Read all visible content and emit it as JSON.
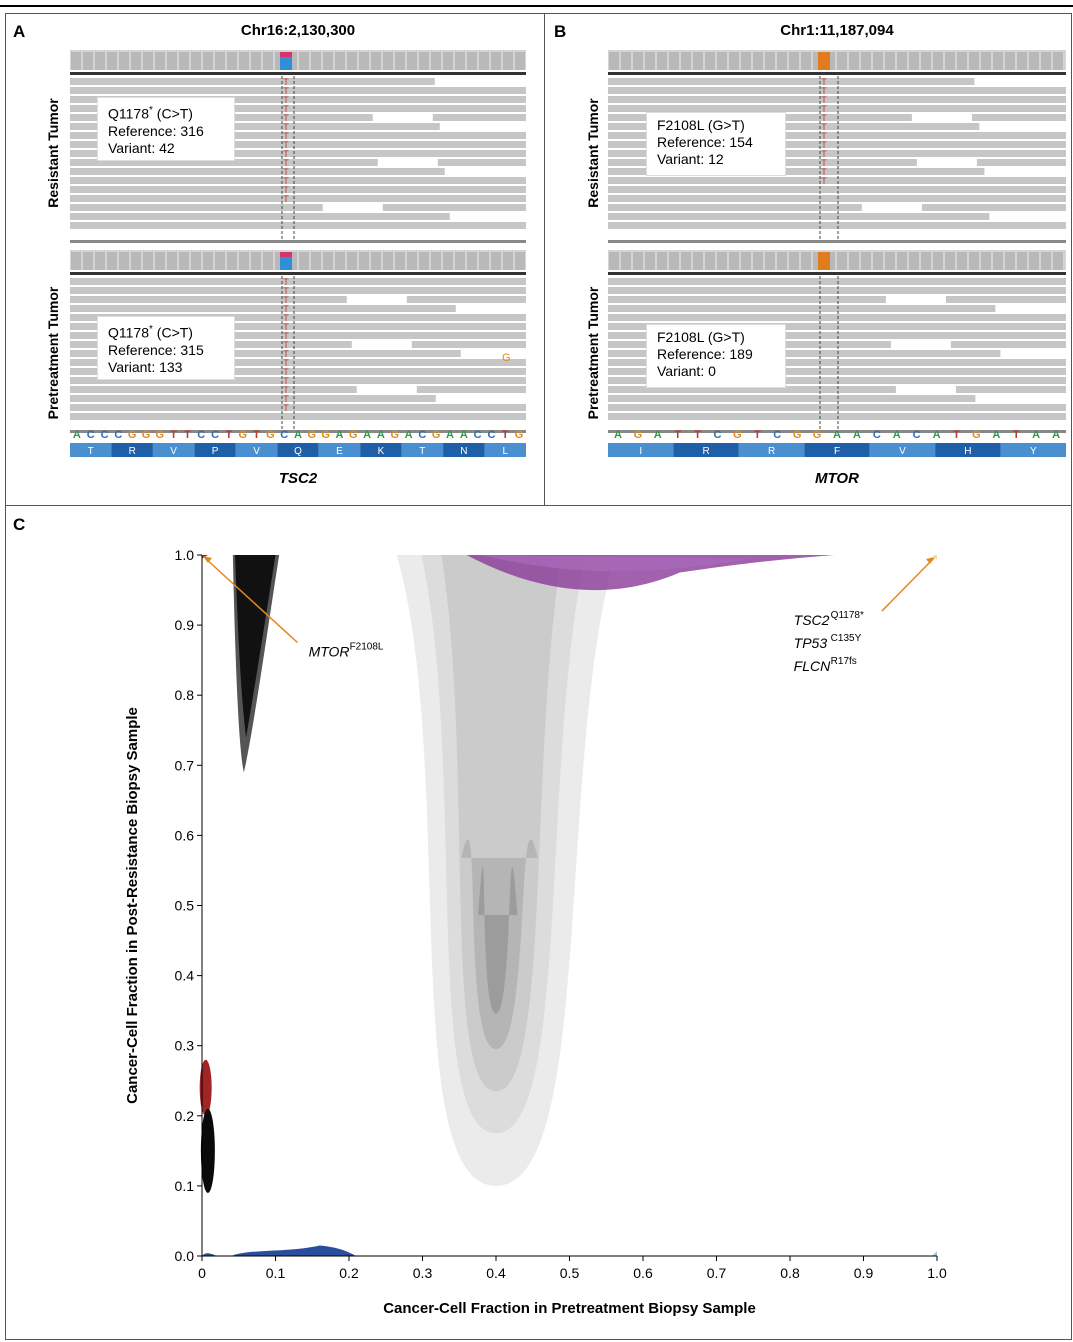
{
  "panels": {
    "a": {
      "label": "A",
      "title": "Chr16:2,130,300",
      "gene": "TSC2",
      "resistant": {
        "row_label": "Resistant Tumor",
        "mutation": "Q1178",
        "mutation_sup": "*",
        "mutation_change": " (C>T)",
        "reference": "Reference: 316",
        "variant": "Variant: 42"
      },
      "pretreatment": {
        "row_label": "Pretreatment Tumor",
        "mutation": "Q1178",
        "mutation_sup": "*",
        "mutation_change": " (C>T)",
        "reference": "Reference: 315",
        "variant": "Variant: 133"
      },
      "sequence": [
        "A",
        "C",
        "C",
        "C",
        "G",
        "G",
        "G",
        "T",
        "T",
        "C",
        "C",
        "T",
        "G",
        "T",
        "G",
        "C",
        "A",
        "G",
        "G",
        "A",
        "G",
        "A",
        "A",
        "G",
        "A",
        "C",
        "G",
        "A",
        "A",
        "C",
        "C",
        "T",
        "G"
      ],
      "amino_acids": [
        "T",
        "R",
        "V",
        "P",
        "V",
        "Q",
        "E",
        "K",
        "T",
        "N",
        "L"
      ],
      "variant_base": "T",
      "extra_base": "G"
    },
    "b": {
      "label": "B",
      "title": "Chr1:11,187,094",
      "gene": "MTOR",
      "resistant": {
        "row_label": "Resistant Tumor",
        "mutation": "F2108L (G>T)",
        "reference": "Reference: 154",
        "variant": "Variant: 12"
      },
      "pretreatment": {
        "row_label": "Pretreatment Tumor",
        "mutation": "F2108L (G>T)",
        "reference": "Reference: 189",
        "variant": "Variant: 0"
      },
      "sequence": [
        "A",
        "G",
        "A",
        "T",
        "T",
        "C",
        "G",
        "T",
        "C",
        "G",
        "G",
        "A",
        "A",
        "C",
        "A",
        "C",
        "A",
        "T",
        "G",
        "A",
        "T",
        "A",
        "A"
      ],
      "amino_acids": [
        "I",
        "R",
        "R",
        "F",
        "V",
        "H",
        "Y"
      ],
      "variant_base": "T"
    },
    "c": {
      "label": "C"
    }
  },
  "base_colors": {
    "A": "#2e9a4a",
    "C": "#2c6fb8",
    "G": "#e08a1e",
    "T": "#c0392b"
  },
  "chart_data": {
    "type": "contour-density",
    "xlabel": "Cancer-Cell Fraction in Pretreatment Biopsy Sample",
    "ylabel": "Cancer-Cell Fraction in Post-Resistance Biopsy Sample",
    "xlim": [
      0,
      1.0
    ],
    "ylim": [
      0,
      1.0
    ],
    "xticks": [
      "0",
      "0.1",
      "0.2",
      "0.3",
      "0.4",
      "0.5",
      "0.6",
      "0.7",
      "0.8",
      "0.9",
      "1.0"
    ],
    "yticks": [
      "0.0",
      "0.1",
      "0.2",
      "0.3",
      "0.4",
      "0.5",
      "0.6",
      "0.7",
      "0.8",
      "0.9",
      "1.0"
    ],
    "clusters": [
      {
        "color": "#111111",
        "x_center": 0.055,
        "y_center": 0.86,
        "x_range": [
          0.045,
          0.105
        ],
        "y_range": [
          0.69,
          1.0
        ]
      },
      {
        "color": "#8a8a8a",
        "x_center": 0.4,
        "y_center": 0.4,
        "x_range": [
          0.28,
          0.55
        ],
        "y_range": [
          0.1,
          1.0
        ]
      },
      {
        "color": "#8b3a98",
        "x_center": 0.6,
        "y_center": 0.98,
        "x_range": [
          0.36,
          0.86
        ],
        "y_range": [
          0.93,
          1.0
        ]
      },
      {
        "color": "#a02525",
        "x_center": 0.005,
        "y_center": 0.24,
        "x_range": [
          0.0,
          0.01
        ],
        "y_range": [
          0.2,
          0.28
        ]
      },
      {
        "color": "#0a0a0a",
        "x_center": 0.008,
        "y_center": 0.15,
        "x_range": [
          0.0,
          0.02
        ],
        "y_range": [
          0.09,
          0.21
        ]
      },
      {
        "color": "#2a4d9e",
        "x_center": 0.1,
        "y_center": 0.005,
        "x_range": [
          0.0,
          0.21
        ],
        "y_range": [
          0.0,
          0.02
        ]
      },
      {
        "color": "#f4e08a",
        "x_center": 1.0,
        "y_center": 1.0,
        "x_range": [
          0.99,
          1.0
        ],
        "y_range": [
          0.99,
          1.0
        ]
      },
      {
        "color": "#8fd0e0",
        "x_center": 1.0,
        "y_center": 0.0,
        "x_range": [
          0.99,
          1.0
        ],
        "y_range": [
          0.0,
          0.01
        ]
      }
    ],
    "annotations": [
      {
        "gene": "MTOR",
        "sup": "F2108L",
        "target": [
          0.0,
          1.0
        ]
      },
      {
        "gene": "TSC2",
        "sup": "Q1178*",
        "target": [
          1.0,
          1.0
        ]
      },
      {
        "gene": "TP53",
        "sup": "C135Y",
        "target": [
          1.0,
          1.0
        ]
      },
      {
        "gene": "FLCN",
        "sup": "R17fs",
        "target": [
          1.0,
          1.0
        ]
      }
    ],
    "arrow_color": "#e08a1e"
  }
}
